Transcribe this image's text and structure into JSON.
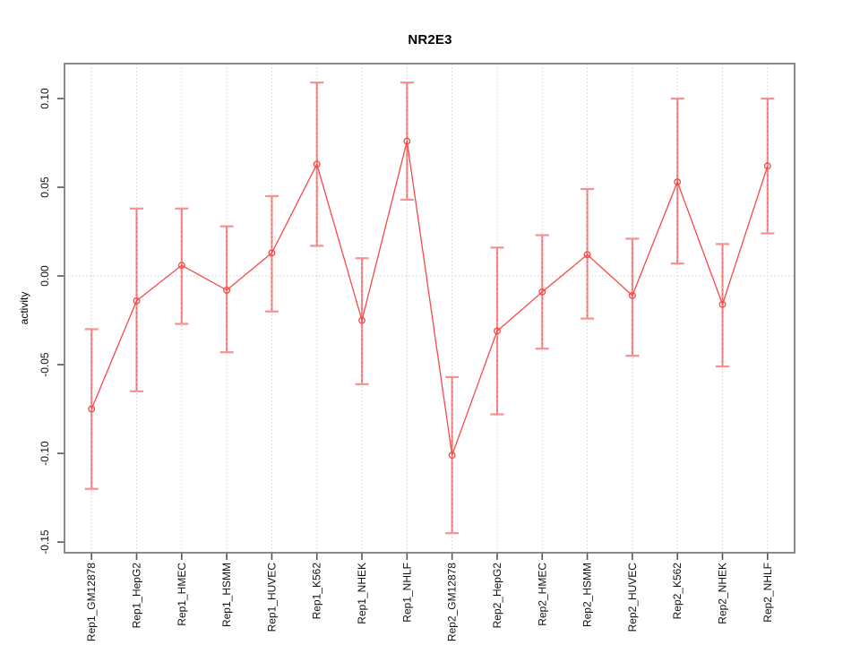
{
  "chart_data": {
    "type": "line",
    "title": "NR2E3",
    "xlabel": "",
    "ylabel": "activity",
    "legend": "none",
    "marker": "open-circle",
    "categories": [
      "Rep1_GM12878",
      "Rep1_HepG2",
      "Rep1_HMEC",
      "Rep1_HSMM",
      "Rep1_HUVEC",
      "Rep1_K562",
      "Rep1_NHEK",
      "Rep1_NHLF",
      "Rep2_GM12878",
      "Rep2_HepG2",
      "Rep2_HMEC",
      "Rep2_HSMM",
      "Rep2_HUVEC",
      "Rep2_K562",
      "Rep2_NHEK",
      "Rep2_NHLF"
    ],
    "series": [
      {
        "name": "activity",
        "values": [
          -0.075,
          -0.014,
          0.006,
          -0.008,
          0.013,
          0.063,
          -0.025,
          0.076,
          -0.101,
          -0.031,
          -0.009,
          0.012,
          -0.011,
          0.053,
          -0.016,
          0.062
        ],
        "ci_lower": [
          -0.12,
          -0.065,
          -0.027,
          -0.043,
          -0.02,
          0.017,
          -0.061,
          0.043,
          -0.145,
          -0.078,
          -0.041,
          -0.024,
          -0.045,
          0.007,
          -0.051,
          0.024
        ],
        "ci_upper": [
          -0.03,
          0.038,
          0.038,
          0.028,
          0.045,
          0.109,
          0.01,
          0.109,
          -0.057,
          0.016,
          0.023,
          0.049,
          0.021,
          0.1,
          0.018,
          0.1
        ]
      }
    ],
    "ytick_labels": [
      "0.10",
      "0.05",
      "0.00",
      "-0.05",
      "-0.10",
      "-0.15"
    ],
    "ytick_values": [
      0.1,
      0.05,
      0.0,
      -0.05,
      -0.1,
      -0.15
    ],
    "ylim": [
      -0.156,
      0.1197
    ],
    "grid": {
      "vertical": "dotted-at-each-category",
      "horizontal_at": 0.0
    }
  },
  "colors": {
    "line": "#f44a4a",
    "error_bar": "#f79090",
    "error_bar_dash": "#e84545",
    "grid": "#cfcfcf",
    "box": "#7e7e7e",
    "tick": "#555555",
    "text": "#111111"
  }
}
